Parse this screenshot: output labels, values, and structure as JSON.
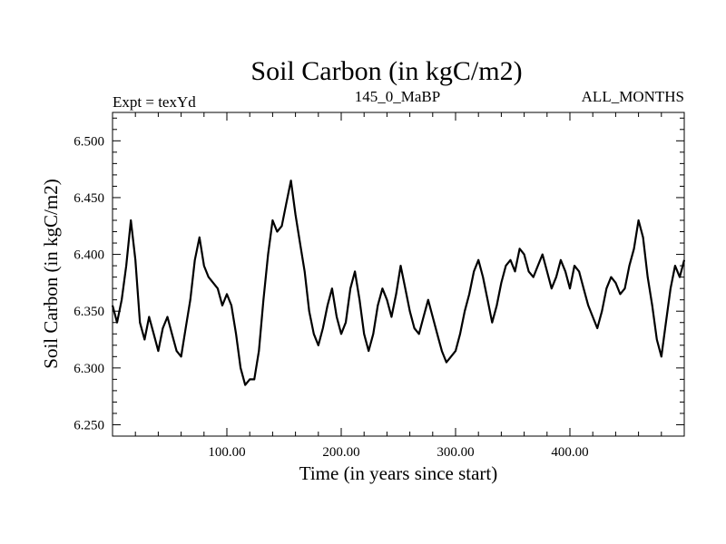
{
  "chart_data": {
    "type": "line",
    "title": "Soil Carbon (in kgC/m2)",
    "subtitle_left": "Expt = texYd",
    "subtitle_center": "145_0_MaBP",
    "subtitle_right": "ALL_MONTHS",
    "xlabel": "Time (in years since start)",
    "ylabel": "Soil Carbon (in kgC/m2)",
    "xlim": [
      0,
      500
    ],
    "ylim": [
      6.24,
      6.525
    ],
    "xticks": [
      100,
      200,
      300,
      400
    ],
    "xtick_labels": [
      "100.00",
      "200.00",
      "300.00",
      "400.00"
    ],
    "yticks": [
      6.25,
      6.3,
      6.35,
      6.4,
      6.45,
      6.5
    ],
    "ytick_labels": [
      "6.250",
      "6.300",
      "6.350",
      "6.400",
      "6.450",
      "6.500"
    ],
    "line_color": "#000000",
    "grid": false,
    "series": [
      {
        "x": [
          0,
          4,
          8,
          12,
          16,
          20,
          24,
          28,
          32,
          36,
          40,
          44,
          48,
          52,
          56,
          60,
          64,
          68,
          72,
          76,
          80,
          84,
          88,
          92,
          96,
          100,
          104,
          108,
          112,
          116,
          120,
          124,
          128,
          132,
          136,
          140,
          144,
          148,
          152,
          156,
          160,
          164,
          168,
          172,
          176,
          180,
          184,
          188,
          192,
          196,
          200,
          204,
          208,
          212,
          216,
          220,
          224,
          228,
          232,
          236,
          240,
          244,
          248,
          252,
          256,
          260,
          264,
          268,
          272,
          276,
          280,
          284,
          288,
          292,
          296,
          300,
          304,
          308,
          312,
          316,
          320,
          324,
          328,
          332,
          336,
          340,
          344,
          348,
          352,
          356,
          360,
          364,
          368,
          372,
          376,
          380,
          384,
          388,
          392,
          396,
          400,
          404,
          408,
          412,
          416,
          420,
          424,
          428,
          432,
          436,
          440,
          444,
          448,
          452,
          456,
          460,
          464,
          468,
          472,
          476,
          480,
          484,
          488,
          492,
          496,
          500
        ],
        "values": [
          6.355,
          6.34,
          6.36,
          6.39,
          6.43,
          6.395,
          6.34,
          6.325,
          6.345,
          6.33,
          6.315,
          6.335,
          6.345,
          6.33,
          6.315,
          6.31,
          6.335,
          6.36,
          6.395,
          6.415,
          6.39,
          6.38,
          6.375,
          6.37,
          6.355,
          6.365,
          6.355,
          6.33,
          6.3,
          6.285,
          6.29,
          6.29,
          6.315,
          6.36,
          6.4,
          6.43,
          6.42,
          6.425,
          6.445,
          6.465,
          6.435,
          6.41,
          6.385,
          6.35,
          6.33,
          6.32,
          6.335,
          6.355,
          6.37,
          6.345,
          6.33,
          6.34,
          6.37,
          6.385,
          6.36,
          6.33,
          6.315,
          6.33,
          6.355,
          6.37,
          6.36,
          6.345,
          6.365,
          6.39,
          6.37,
          6.35,
          6.335,
          6.33,
          6.345,
          6.36,
          6.345,
          6.33,
          6.315,
          6.305,
          6.31,
          6.315,
          6.33,
          6.35,
          6.365,
          6.385,
          6.395,
          6.38,
          6.36,
          6.34,
          6.355,
          6.375,
          6.39,
          6.395,
          6.385,
          6.405,
          6.4,
          6.385,
          6.38,
          6.39,
          6.4,
          6.385,
          6.37,
          6.38,
          6.395,
          6.385,
          6.37,
          6.39,
          6.385,
          6.37,
          6.355,
          6.345,
          6.335,
          6.35,
          6.37,
          6.38,
          6.375,
          6.365,
          6.37,
          6.39,
          6.405,
          6.43,
          6.415,
          6.38,
          6.355,
          6.325,
          6.31,
          6.34,
          6.37,
          6.39,
          6.38,
          6.395
        ]
      }
    ]
  }
}
